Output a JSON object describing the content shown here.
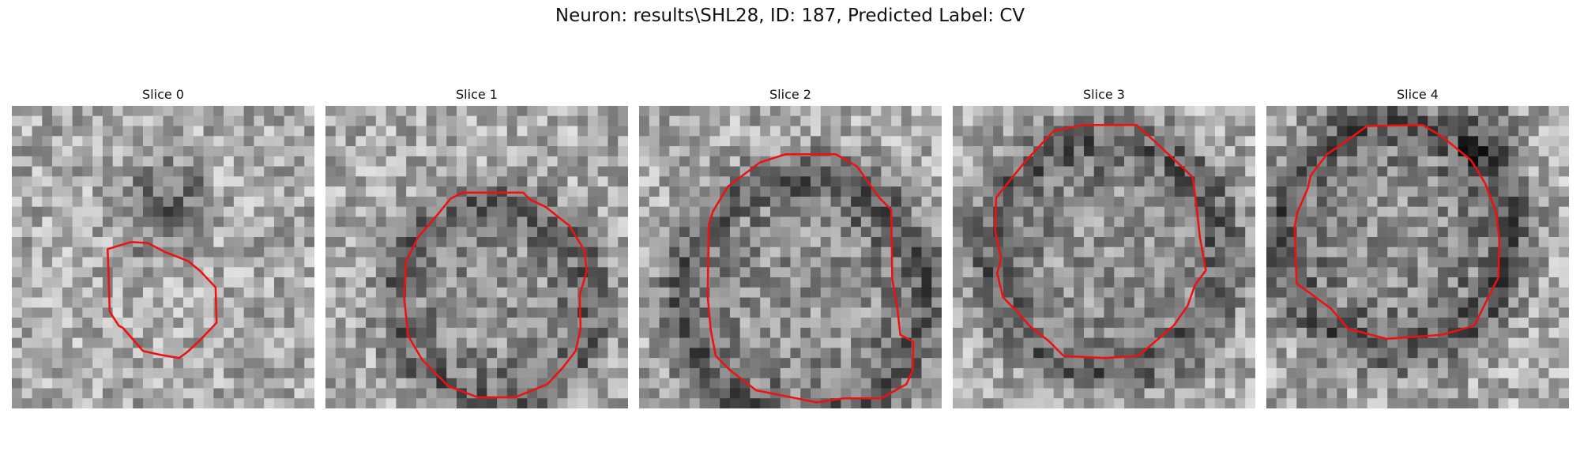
{
  "figure": {
    "title": "Neuron: results\\SHL28, ID: 187, Predicted Label: CV"
  },
  "colors": {
    "contour": "#ee1111",
    "background": "#ffffff"
  },
  "grid_size": 30,
  "panels": [
    {
      "title": "Slice 0",
      "seed": 11,
      "blob": {
        "cx": 15.5,
        "cy": 10.0,
        "r": 5.5,
        "dark": 55
      },
      "ring": null,
      "contour": [
        [
          9.5,
          14.2
        ],
        [
          11.8,
          13.5
        ],
        [
          13.5,
          13.6
        ],
        [
          15.2,
          14.5
        ],
        [
          17.5,
          15.4
        ],
        [
          18.7,
          16.4
        ],
        [
          20.2,
          18.0
        ],
        [
          20.3,
          21.5
        ],
        [
          18.5,
          23.4
        ],
        [
          17.4,
          24.4
        ],
        [
          16.6,
          25.0
        ],
        [
          14.8,
          24.7
        ],
        [
          13.0,
          24.3
        ],
        [
          11.0,
          22.0
        ],
        [
          10.6,
          21.8
        ],
        [
          9.7,
          20.4
        ],
        [
          9.6,
          17.0
        ]
      ]
    },
    {
      "title": "Slice 1",
      "seed": 23,
      "blob": null,
      "ring": {
        "cx": 16.8,
        "cy": 19.5,
        "r": 9.6,
        "w": 2.4,
        "dark": 70
      },
      "contour": [
        [
          11.1,
          10.8
        ],
        [
          12.4,
          9.2
        ],
        [
          13.6,
          8.6
        ],
        [
          19.6,
          8.6
        ],
        [
          20.3,
          9.3
        ],
        [
          21.8,
          10.0
        ],
        [
          24.2,
          11.9
        ],
        [
          25.7,
          14.4
        ],
        [
          25.9,
          16.4
        ],
        [
          25.2,
          18.8
        ],
        [
          25.3,
          22.1
        ],
        [
          24.8,
          24.3
        ],
        [
          23.5,
          26.0
        ],
        [
          22.0,
          27.6
        ],
        [
          18.8,
          28.9
        ],
        [
          15.1,
          28.9
        ],
        [
          12.2,
          27.8
        ],
        [
          9.6,
          25.2
        ],
        [
          8.2,
          22.8
        ],
        [
          7.8,
          19.1
        ],
        [
          8.0,
          15.4
        ],
        [
          9.2,
          13.0
        ]
      ]
    },
    {
      "title": "Slice 2",
      "seed": 37,
      "blob": null,
      "ring": {
        "cx": 16.2,
        "cy": 19.0,
        "r": 11.8,
        "w": 2.6,
        "dark": 80
      },
      "contour": [
        [
          8.8,
          8.0
        ],
        [
          12.0,
          5.6
        ],
        [
          14.5,
          4.8
        ],
        [
          19.5,
          4.8
        ],
        [
          21.6,
          6.0
        ],
        [
          23.8,
          9.1
        ],
        [
          25.0,
          10.3
        ],
        [
          25.1,
          17.2
        ],
        [
          25.6,
          20.0
        ],
        [
          25.9,
          22.7
        ],
        [
          27.2,
          23.4
        ],
        [
          27.1,
          26.3
        ],
        [
          26.5,
          27.6
        ],
        [
          24.0,
          29.0
        ],
        [
          20.3,
          29.0
        ],
        [
          17.6,
          29.4
        ],
        [
          11.6,
          28.2
        ],
        [
          9.0,
          26.2
        ],
        [
          7.6,
          24.8
        ],
        [
          7.1,
          22.2
        ],
        [
          6.8,
          18.9
        ],
        [
          6.9,
          11.8
        ],
        [
          7.3,
          10.5
        ]
      ]
    },
    {
      "title": "Slice 3",
      "seed": 51,
      "blob": null,
      "ring": {
        "cx": 15.3,
        "cy": 14.8,
        "r": 11.3,
        "w": 2.8,
        "dark": 75
      },
      "contour": [
        [
          7.2,
          5.5
        ],
        [
          10.0,
          2.5
        ],
        [
          12.9,
          1.9
        ],
        [
          18.2,
          1.9
        ],
        [
          20.0,
          3.5
        ],
        [
          22.9,
          6.2
        ],
        [
          23.8,
          7.1
        ],
        [
          24.2,
          10.2
        ],
        [
          24.5,
          13.0
        ],
        [
          25.1,
          16.3
        ],
        [
          24.0,
          17.8
        ],
        [
          23.3,
          19.8
        ],
        [
          21.9,
          21.8
        ],
        [
          18.4,
          24.8
        ],
        [
          15.0,
          25.0
        ],
        [
          11.0,
          24.8
        ],
        [
          9.5,
          23.3
        ],
        [
          7.6,
          21.8
        ],
        [
          6.3,
          20.3
        ],
        [
          5.0,
          19.0
        ],
        [
          4.4,
          16.6
        ],
        [
          4.8,
          15.1
        ],
        [
          4.2,
          12.4
        ],
        [
          4.3,
          9.1
        ]
      ]
    },
    {
      "title": "Slice 4",
      "seed": 67,
      "blob": {
        "cx": 22.5,
        "cy": 3.0,
        "r": 3.5,
        "dark": 35
      },
      "ring": {
        "cx": 12.8,
        "cy": 13.0,
        "r": 11.0,
        "w": 2.8,
        "dark": 85
      },
      "contour": [
        [
          7.2,
          4.0
        ],
        [
          10.0,
          2.0
        ],
        [
          15.5,
          1.9
        ],
        [
          17.5,
          3.1
        ],
        [
          20.3,
          5.4
        ],
        [
          21.7,
          7.7
        ],
        [
          22.8,
          10.6
        ],
        [
          23.1,
          13.3
        ],
        [
          23.0,
          17.0
        ],
        [
          21.8,
          19.4
        ],
        [
          20.6,
          21.8
        ],
        [
          17.4,
          22.7
        ],
        [
          11.9,
          23.1
        ],
        [
          8.1,
          22.1
        ],
        [
          6.4,
          20.1
        ],
        [
          3.0,
          17.6
        ],
        [
          2.8,
          12.0
        ],
        [
          3.1,
          10.5
        ],
        [
          4.1,
          8.2
        ],
        [
          4.4,
          6.9
        ],
        [
          6.0,
          4.8
        ]
      ]
    }
  ]
}
